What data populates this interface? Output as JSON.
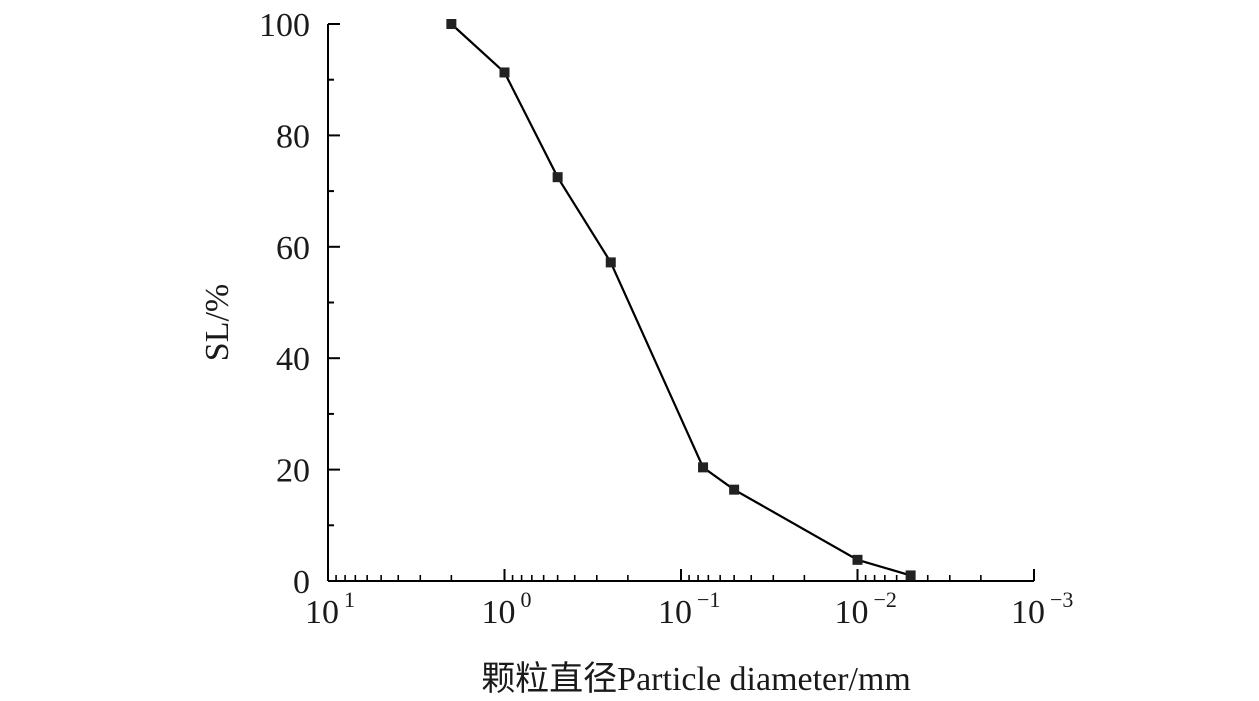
{
  "chart_data": {
    "type": "line",
    "xlabel": "颗粒直径Particle diameter/mm",
    "ylabel": "SL/%",
    "x_scale": "log",
    "x_reversed": true,
    "xlim": [
      10,
      0.001
    ],
    "ylim": [
      0,
      100
    ],
    "x_ticks": [
      {
        "value": 10,
        "base": "10",
        "exp": "1"
      },
      {
        "value": 1,
        "base": "10",
        "exp": "0"
      },
      {
        "value": 0.1,
        "base": "10",
        "exp": "−1"
      },
      {
        "value": 0.01,
        "base": "10",
        "exp": "−2"
      },
      {
        "value": 0.001,
        "base": "10",
        "exp": "−3"
      }
    ],
    "y_ticks": [
      "0",
      "20",
      "40",
      "60",
      "80",
      "100"
    ],
    "grid": false,
    "series": [
      {
        "x": [
          2,
          1,
          0.5,
          0.25,
          0.075,
          0.05,
          0.01,
          0.005
        ],
        "y": [
          100,
          91.3,
          72.5,
          57.2,
          20.4,
          16.4,
          3.8,
          1.0
        ]
      }
    ],
    "color": "#000000"
  }
}
